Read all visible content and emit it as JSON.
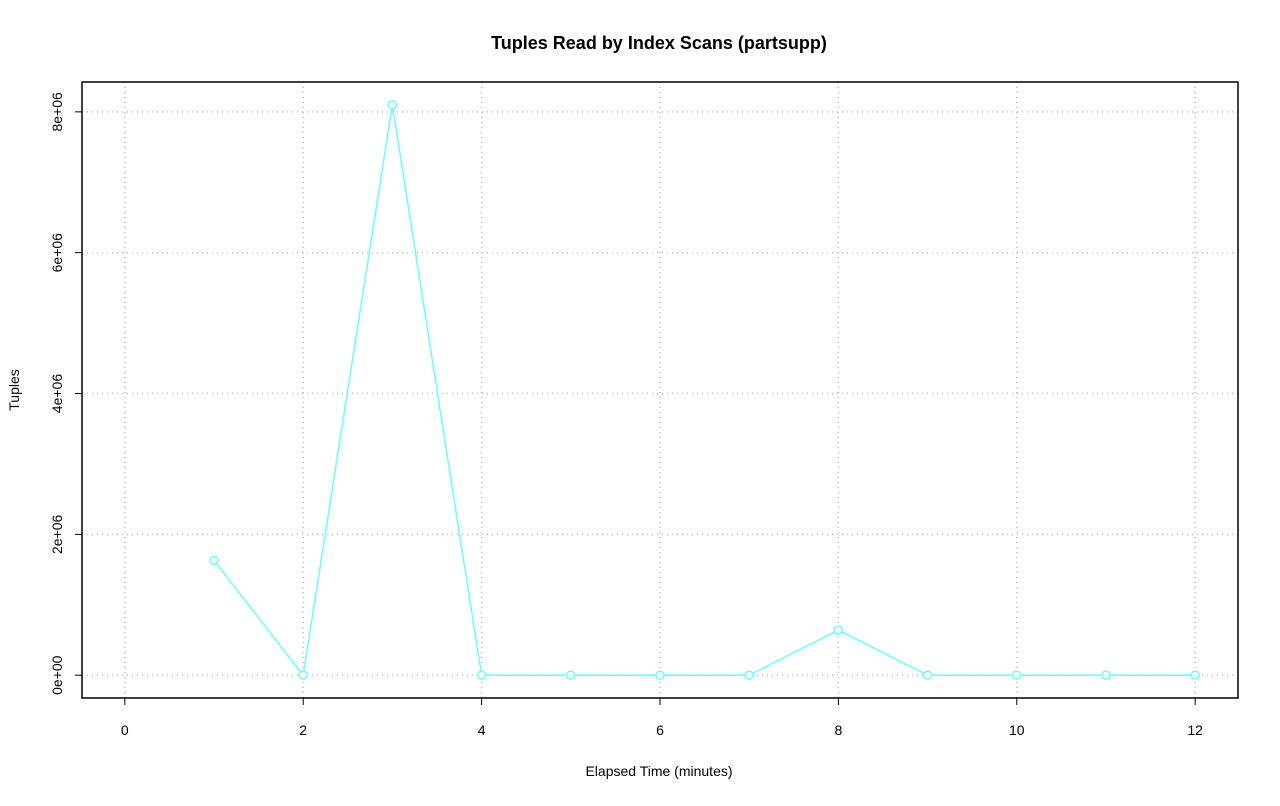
{
  "chart_data": {
    "type": "line",
    "title": "Tuples Read by Index Scans (partsupp)",
    "x_label": "Elapsed Time (minutes)",
    "y_label": "Tuples",
    "x": [
      1,
      2,
      3,
      4,
      5,
      6,
      7,
      8,
      9,
      10,
      11,
      12
    ],
    "series": [
      {
        "name": "partsupp",
        "color": "#66ffff",
        "values": [
          1630000,
          0,
          8100000,
          0,
          0,
          0,
          0,
          640000,
          0,
          0,
          0,
          0
        ]
      }
    ],
    "xlim": [
      -0.48,
      12.48
    ],
    "xticks": [
      0,
      2,
      4,
      6,
      8,
      10,
      12
    ],
    "ylim": [
      -324000,
      8424000
    ],
    "yticks": [
      {
        "value": 0,
        "label": "0e+00"
      },
      {
        "value": 2000000,
        "label": "2e+06"
      },
      {
        "value": 4000000,
        "label": "4e+06"
      },
      {
        "value": 6000000,
        "label": "6e+06"
      },
      {
        "value": 8000000,
        "label": "8e+06"
      }
    ],
    "grid": true
  }
}
